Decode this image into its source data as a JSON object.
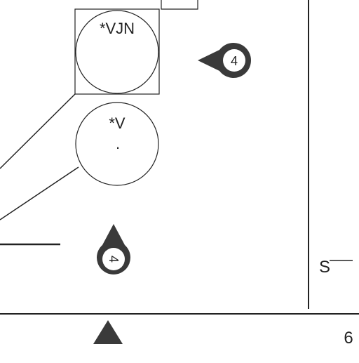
{
  "sheet": {
    "page_number": "6",
    "edge_mark": "S"
  },
  "nodes": [
    {
      "id": "vjn",
      "label": "*VJN",
      "sub": "",
      "boxed": true
    },
    {
      "id": "v",
      "label": "*V",
      "sub": ".",
      "boxed": false
    }
  ],
  "markers": [
    {
      "id": "marker-right",
      "label": "4",
      "pointing": "left"
    },
    {
      "id": "marker-bottom",
      "label": "4",
      "pointing": "up"
    }
  ],
  "colors": {
    "ink": "#222222",
    "marker_fill": "#3a3a3a",
    "paper": "#ffffff"
  }
}
